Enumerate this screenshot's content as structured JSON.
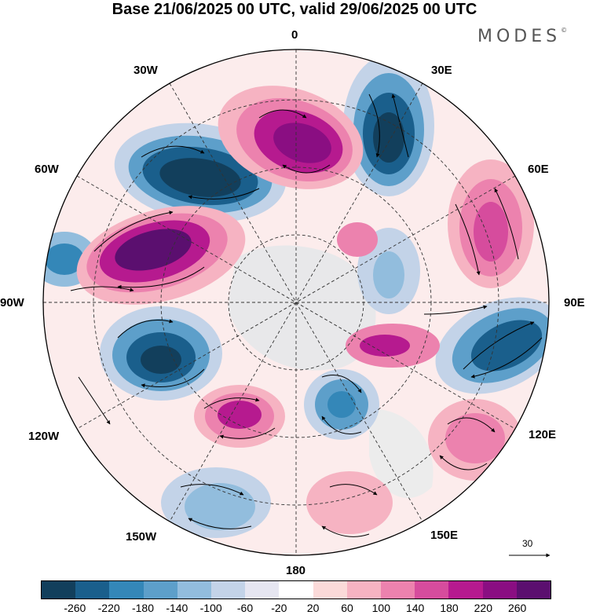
{
  "title": "Base 21/06/2025 00 UTC, valid 29/06/2025 00 UTC",
  "brand": {
    "name": "MODES",
    "mark": "©"
  },
  "longitude_labels": {
    "lon_0": "0",
    "lon_30e": "30E",
    "lon_60e": "60E",
    "lon_90e": "90E",
    "lon_120e": "120E",
    "lon_150e": "150E",
    "lon_180": "180",
    "lon_150w": "150W",
    "lon_120w": "120W",
    "lon_90w": "90W",
    "lon_60w": "60W",
    "lon_30w": "30W"
  },
  "vector_scale_label": "30",
  "colorbar": {
    "colors": [
      "#123f5c",
      "#1a5f8c",
      "#3487b8",
      "#5d9fca",
      "#92bddd",
      "#c3d3e8",
      "#e6e6f1",
      "#ffffff",
      "#fbdad9",
      "#f6b3c2",
      "#ec82ae",
      "#d64c9d",
      "#b61a8f",
      "#8a0e82",
      "#5b0f6f"
    ],
    "ticks": [
      "-260",
      "-220",
      "-180",
      "-140",
      "-100",
      "-60",
      "-20",
      "20",
      "60",
      "100",
      "140",
      "180",
      "220",
      "260"
    ]
  },
  "anomaly_centers": [
    {
      "lon_sector": "30W-0",
      "sign": "positive",
      "level": 220
    },
    {
      "lon_sector": "0-30E",
      "sign": "negative",
      "level": -220
    },
    {
      "lon_sector": "30W-60W",
      "sign": "negative",
      "level": -260
    },
    {
      "lon_sector": "60E",
      "sign": "positive",
      "level": 200
    },
    {
      "lon_sector": "60W-90W",
      "sign": "positive",
      "level": 260
    },
    {
      "lon_sector": "90W",
      "sign": "negative",
      "level": -140
    },
    {
      "lon_sector": "90E-120E",
      "sign": "negative",
      "level": -220
    },
    {
      "lon_sector": "90W-120W",
      "sign": "negative",
      "level": -220
    },
    {
      "lon_sector": "120W-150W",
      "sign": "positive",
      "level": 220
    },
    {
      "lon_sector": "180-150E",
      "sign": "negative",
      "level": -140
    },
    {
      "lon_sector": "120E",
      "sign": "positive",
      "level": 160
    },
    {
      "lon_sector": "150W-180",
      "sign": "negative",
      "level": -100
    }
  ]
}
